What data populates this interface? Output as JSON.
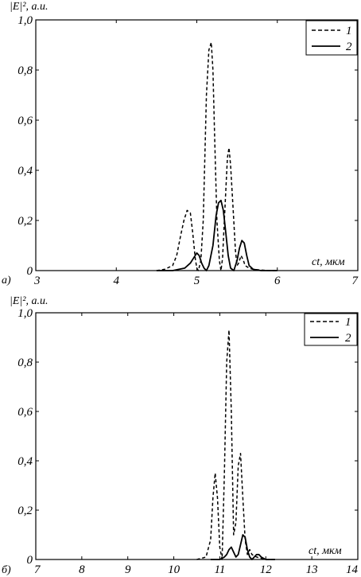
{
  "chart_data": [
    {
      "type": "line",
      "panel_label": "а)",
      "ylabel": "|E|², а.u.",
      "xlabel": "ct, мкм",
      "xlim": [
        3,
        7
      ],
      "ylim": [
        0,
        1.0
      ],
      "xticks": [
        "3",
        "4",
        "5",
        "6",
        "7"
      ],
      "yticks": [
        "0",
        "0,2",
        "0,4",
        "0,6",
        "0,8",
        "1,0"
      ],
      "legend_position": "top-right",
      "series": [
        {
          "name": "1",
          "style": "dashed",
          "x": [
            4.5,
            4.6,
            4.7,
            4.75,
            4.8,
            4.84,
            4.88,
            4.92,
            4.95,
            4.98,
            5.0,
            5.02,
            5.05,
            5.08,
            5.1,
            5.12,
            5.15,
            5.18,
            5.2,
            5.22,
            5.25,
            5.28,
            5.3,
            5.32,
            5.35,
            5.38,
            5.4,
            5.42,
            5.45,
            5.48,
            5.5,
            5.52,
            5.55,
            5.58,
            5.6,
            5.65,
            5.7,
            5.8,
            5.9,
            6.0
          ],
          "y": [
            0.0,
            0.005,
            0.02,
            0.06,
            0.14,
            0.2,
            0.24,
            0.23,
            0.15,
            0.05,
            0.01,
            0.0,
            0.04,
            0.2,
            0.45,
            0.7,
            0.88,
            0.91,
            0.8,
            0.55,
            0.2,
            0.04,
            0.0,
            0.05,
            0.25,
            0.45,
            0.49,
            0.42,
            0.25,
            0.08,
            0.02,
            0.03,
            0.06,
            0.04,
            0.02,
            0.01,
            0.005,
            0.002,
            0.0,
            0.0
          ]
        },
        {
          "name": "2",
          "style": "solid",
          "x": [
            4.5,
            4.7,
            4.85,
            4.92,
            4.96,
            5.0,
            5.03,
            5.06,
            5.09,
            5.12,
            5.15,
            5.2,
            5.24,
            5.27,
            5.3,
            5.33,
            5.36,
            5.39,
            5.42,
            5.46,
            5.5,
            5.53,
            5.56,
            5.59,
            5.62,
            5.65,
            5.7,
            5.8,
            6.0
          ],
          "y": [
            0.0,
            0.0,
            0.01,
            0.03,
            0.05,
            0.07,
            0.06,
            0.03,
            0.01,
            0.0,
            0.02,
            0.1,
            0.22,
            0.27,
            0.28,
            0.24,
            0.15,
            0.06,
            0.01,
            0.0,
            0.04,
            0.09,
            0.12,
            0.11,
            0.06,
            0.02,
            0.005,
            0.0,
            0.0
          ]
        }
      ]
    },
    {
      "type": "line",
      "panel_label": "б)",
      "ylabel": "|E|², а.u.",
      "xlabel": "ct, мкм",
      "xlim": [
        7,
        14
      ],
      "ylim": [
        0,
        1.0
      ],
      "xticks": [
        "7",
        "8",
        "9",
        "10",
        "11",
        "12",
        "13",
        "14"
      ],
      "yticks": [
        "0",
        "0,2",
        "0,4",
        "0,6",
        "0,8",
        "1,0"
      ],
      "legend_position": "top-right",
      "series": [
        {
          "name": "1",
          "style": "dashed",
          "x": [
            10.5,
            10.6,
            10.7,
            10.8,
            10.85,
            10.9,
            10.95,
            11.0,
            11.05,
            11.1,
            11.15,
            11.2,
            11.25,
            11.3,
            11.35,
            11.4,
            11.45,
            11.5,
            11.55,
            11.6,
            11.65,
            11.7,
            11.8,
            11.9,
            12.0,
            12.2
          ],
          "y": [
            0.0,
            0.005,
            0.01,
            0.08,
            0.25,
            0.35,
            0.25,
            0.05,
            0.0,
            0.35,
            0.8,
            0.93,
            0.6,
            0.1,
            0.15,
            0.38,
            0.43,
            0.25,
            0.08,
            0.02,
            0.04,
            0.02,
            0.01,
            0.005,
            0.0,
            0.0
          ]
        },
        {
          "name": "2",
          "style": "solid",
          "x": [
            10.8,
            11.0,
            11.1,
            11.15,
            11.2,
            11.25,
            11.3,
            11.35,
            11.4,
            11.45,
            11.5,
            11.55,
            11.6,
            11.65,
            11.7,
            11.75,
            11.8,
            11.85,
            11.9,
            11.95,
            12.0,
            12.2
          ],
          "y": [
            0.0,
            0.0,
            0.01,
            0.02,
            0.04,
            0.05,
            0.03,
            0.01,
            0.02,
            0.06,
            0.1,
            0.09,
            0.04,
            0.01,
            0.0,
            0.01,
            0.02,
            0.02,
            0.01,
            0.005,
            0.0,
            0.0
          ]
        }
      ]
    }
  ]
}
